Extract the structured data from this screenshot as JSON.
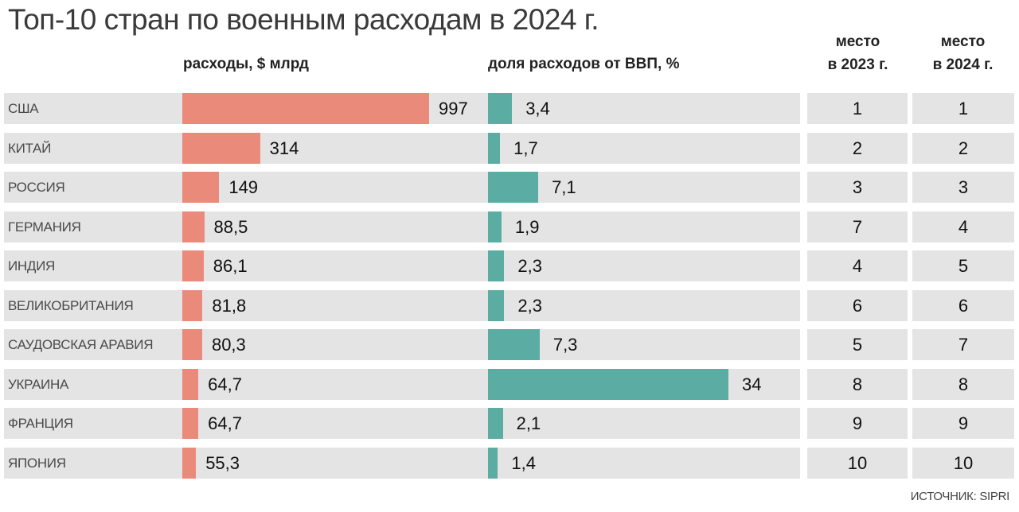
{
  "title": "Топ-10 стран по военным расходам в 2024 г.",
  "headers": {
    "spending": "расходы, $ млрд",
    "gdp_share": "доля расходов от ВВП, %",
    "rank_2023_line1": "место",
    "rank_2023_line2": "в 2023 г.",
    "rank_2024_line1": "место",
    "rank_2024_line2": "в 2024 г."
  },
  "source": "ИСТОЧНИК: SIPRI",
  "colors": {
    "spending_bar": "#ea8a7a",
    "gdp_bar": "#5bada4",
    "row_background": "#e4e4e4"
  },
  "chart_data": {
    "type": "bar",
    "title": "Топ-10 стран по военным расходам в 2024 г.",
    "categories": [
      "США",
      "КИТАЙ",
      "РОССИЯ",
      "ГЕРМАНИЯ",
      "ИНДИЯ",
      "ВЕЛИКОБРИТАНИЯ",
      "САУДОВСКАЯ АРАВИЯ",
      "УКРАИНА",
      "ФРАНЦИЯ",
      "ЯПОНИЯ"
    ],
    "series": [
      {
        "name": "расходы, $ млрд",
        "values": [
          997,
          314,
          149,
          88.5,
          86.1,
          81.8,
          80.3,
          64.7,
          64.7,
          55.3
        ],
        "labels": [
          "997",
          "314",
          "149",
          "88,5",
          "86,1",
          "81,8",
          "80,3",
          "64,7",
          "64,7",
          "55,3"
        ]
      },
      {
        "name": "доля расходов от ВВП, %",
        "values": [
          3.4,
          1.7,
          7.1,
          1.9,
          2.3,
          2.3,
          7.3,
          34,
          2.1,
          1.4
        ],
        "labels": [
          "3,4",
          "1,7",
          "7,1",
          "1,9",
          "2,3",
          "2,3",
          "7,3",
          "34",
          "2,1",
          "1,4"
        ]
      }
    ],
    "rank_2023": [
      "1",
      "2",
      "3",
      "7",
      "4",
      "6",
      "5",
      "8",
      "9",
      "10"
    ],
    "rank_2024": [
      "1",
      "2",
      "3",
      "4",
      "5",
      "6",
      "7",
      "8",
      "9",
      "10"
    ],
    "grid": false,
    "legend": "none"
  }
}
